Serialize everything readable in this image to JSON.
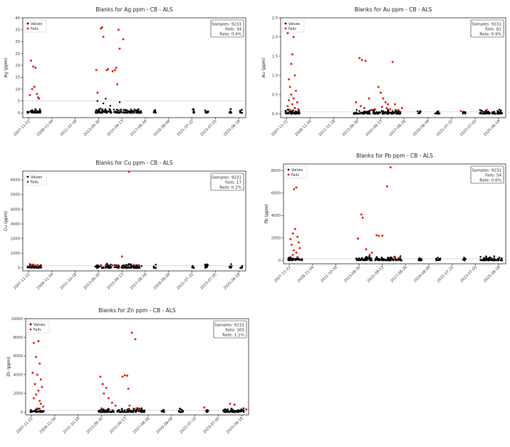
{
  "x_ticks": [
    "2007-11-22",
    "2009-11-04",
    "2011-10-18",
    "2013-09-30",
    "2015-09-13",
    "2017-08-26",
    "2019-08-09",
    "2021-07-22",
    "2023-07-05",
    "2025-06-18"
  ],
  "legend": {
    "values": "Values",
    "fails": "Fails"
  },
  "colors": {
    "values": "#000000",
    "fails": "#e8140c",
    "threshold": "#9a9a9a"
  },
  "chart_data": [
    {
      "type": "scatter",
      "title": "Blanks for Ag ppm - CB - ALS",
      "ylabel": "Ag (ppm)",
      "ylim": [
        -2,
        40
      ],
      "yticks": [
        "0",
        "5",
        "10",
        "15",
        "20",
        "25",
        "30",
        "35",
        "40"
      ],
      "ytick_values": [
        0,
        5,
        10,
        15,
        20,
        25,
        30,
        35,
        40
      ],
      "threshold": 5,
      "stats": {
        "samples": "Samples: 9231",
        "fails": "Fails: 34",
        "rate": "Rate: 0.4%"
      },
      "fails": [
        [
          0.1,
          22
        ],
        [
          0.2,
          19.5
        ],
        [
          0.3,
          19
        ],
        [
          0.25,
          11
        ],
        [
          0.15,
          10
        ],
        [
          0.35,
          8
        ],
        [
          0.05,
          7.5
        ],
        [
          0.4,
          6.5
        ],
        [
          0.45,
          6
        ],
        [
          2.9,
          18
        ],
        [
          2.95,
          8.5
        ],
        [
          3.1,
          35.5
        ],
        [
          3.15,
          36
        ],
        [
          3.2,
          32
        ],
        [
          3.35,
          18
        ],
        [
          3.4,
          18.5
        ],
        [
          3.6,
          17.5
        ],
        [
          3.7,
          18
        ],
        [
          3.75,
          19
        ],
        [
          3.8,
          12
        ],
        [
          3.85,
          35
        ],
        [
          3.9,
          27
        ],
        [
          4.05,
          31
        ]
      ]
    },
    {
      "type": "scatter",
      "title": "Blanks for Au ppm - CB - ALS",
      "ylabel": "Au (ppm)",
      "ylim": [
        -0.1,
        2.5
      ],
      "yticks": [
        "0.0",
        "0.5",
        "1.0",
        "1.5",
        "2.0",
        "2.5"
      ],
      "ytick_values": [
        0,
        0.5,
        1,
        1.5,
        2,
        2.5
      ],
      "threshold": 0.05,
      "stats": {
        "samples": "Samples: 9231",
        "fails": "Fails: 82",
        "rate": "Rate: 0.9%"
      },
      "fails": [
        [
          0.05,
          2.1
        ],
        [
          0.3,
          2
        ],
        [
          0.25,
          1.55
        ],
        [
          0.2,
          1.3
        ],
        [
          0.35,
          1.0
        ],
        [
          0.1,
          0.9
        ],
        [
          0.15,
          0.7
        ],
        [
          0.4,
          0.6
        ],
        [
          0.2,
          0.5
        ],
        [
          0.3,
          0.4
        ],
        [
          0.1,
          0.35
        ],
        [
          0.45,
          0.3
        ],
        [
          0.25,
          0.25
        ],
        [
          0.05,
          0.2
        ],
        [
          0.35,
          0.15
        ],
        [
          0.5,
          0.12
        ],
        [
          0.15,
          0.1
        ],
        [
          3.1,
          1.45
        ],
        [
          3.2,
          1.4
        ],
        [
          3.35,
          1.38
        ],
        [
          3.5,
          0.4
        ],
        [
          2.95,
          0.3
        ],
        [
          3.15,
          0.2
        ],
        [
          3.3,
          0.15
        ],
        [
          3.6,
          0.1
        ],
        [
          3.75,
          0.12
        ],
        [
          3.9,
          0.7
        ],
        [
          4.0,
          0.55
        ],
        [
          4.1,
          0.4
        ],
        [
          4.2,
          0.3
        ],
        [
          4.3,
          0.25
        ],
        [
          4.05,
          0.18
        ],
        [
          4.25,
          0.15
        ],
        [
          4.4,
          0.12
        ],
        [
          4.5,
          1.35
        ],
        [
          4.6,
          0.25
        ],
        [
          4.75,
          0.1
        ],
        [
          4.9,
          0.15
        ],
        [
          7.4,
          0.07
        ],
        [
          8.5,
          0.1
        ]
      ]
    },
    {
      "type": "scatter",
      "title": "Blanks for Cu ppm - CB - ALS",
      "ylabel": "Cu (ppm)",
      "ylim": [
        -200,
        6600
      ],
      "yticks": [
        "0",
        "1000",
        "2000",
        "3000",
        "4000",
        "5000",
        "6000"
      ],
      "ytick_values": [
        0,
        1000,
        2000,
        3000,
        4000,
        5000,
        6000
      ],
      "threshold": 150,
      "stats": {
        "samples": "Samples: 9231",
        "fails": "Fails: 17",
        "rate": "Rate: 0.2%"
      },
      "fails": [
        [
          0.2,
          230
        ],
        [
          0.4,
          200
        ],
        [
          0.1,
          190
        ],
        [
          0.3,
          180
        ],
        [
          3.1,
          200
        ],
        [
          3.3,
          190
        ],
        [
          3.6,
          180
        ],
        [
          3.8,
          170
        ],
        [
          4.0,
          780
        ],
        [
          4.3,
          6550
        ],
        [
          4.5,
          210
        ],
        [
          4.7,
          190
        ]
      ]
    },
    {
      "type": "scatter",
      "title": "Blanks for Pb ppm - CB - ALS",
      "ylabel": "Pb (ppm)",
      "ylim": [
        -300,
        8600
      ],
      "yticks": [
        "0",
        "2000",
        "4000",
        "6000",
        "8000"
      ],
      "ytick_values": [
        0,
        2000,
        4000,
        6000,
        8000
      ],
      "threshold": 150,
      "stats": {
        "samples": "Samples: 9231",
        "fails": "Fails: 54",
        "rate": "Rate: 0.6%"
      },
      "fails": [
        [
          0.2,
          6350
        ],
        [
          0.3,
          6500
        ],
        [
          0.25,
          2800
        ],
        [
          0.15,
          2400
        ],
        [
          0.35,
          2100
        ],
        [
          0.05,
          1900
        ],
        [
          0.4,
          1600
        ],
        [
          0.1,
          1400
        ],
        [
          0.45,
          1100
        ],
        [
          0.2,
          900
        ],
        [
          0.3,
          700
        ],
        [
          0.15,
          500
        ],
        [
          0.35,
          300
        ],
        [
          2.95,
          1950
        ],
        [
          3.1,
          4100
        ],
        [
          3.15,
          3800
        ],
        [
          3.3,
          1000
        ],
        [
          3.45,
          500
        ],
        [
          3.55,
          700
        ],
        [
          3.75,
          2250
        ],
        [
          3.85,
          2200
        ],
        [
          4.0,
          2200
        ],
        [
          4.2,
          6600
        ],
        [
          4.35,
          8300
        ],
        [
          4.5,
          300
        ],
        [
          4.7,
          200
        ]
      ]
    },
    {
      "type": "scatter",
      "title": "Blanks for Zn ppm - CB - ALS",
      "ylabel": "Zn (ppm)",
      "ylim": [
        -300,
        10000
      ],
      "yticks": [
        "0",
        "2000",
        "4000",
        "6000",
        "8000",
        "10000"
      ],
      "ytick_values": [
        0,
        2000,
        4000,
        6000,
        8000,
        10000
      ],
      "threshold": 200,
      "stats": {
        "samples": "Samples: 9231",
        "fails": "Fails: 103",
        "rate": "Rate: 1.1%"
      },
      "fails": [
        [
          0.1,
          7400
        ],
        [
          0.3,
          7600
        ],
        [
          0.2,
          5900
        ],
        [
          0.35,
          5200
        ],
        [
          0.05,
          4200
        ],
        [
          0.25,
          4000
        ],
        [
          0.4,
          3500
        ],
        [
          0.15,
          3000
        ],
        [
          0.45,
          2700
        ],
        [
          0.3,
          2300
        ],
        [
          0.2,
          1900
        ],
        [
          0.1,
          1500
        ],
        [
          0.35,
          1200
        ],
        [
          0.4,
          900
        ],
        [
          0.5,
          600
        ],
        [
          0.25,
          400
        ],
        [
          2.95,
          3800
        ],
        [
          3.05,
          3000
        ],
        [
          3.2,
          2600
        ],
        [
          3.1,
          2000
        ],
        [
          3.3,
          1500
        ],
        [
          3.45,
          1000
        ],
        [
          3.6,
          700
        ],
        [
          3.0,
          400
        ],
        [
          3.9,
          3800
        ],
        [
          4.0,
          3950
        ],
        [
          4.1,
          3900
        ],
        [
          4.15,
          2500
        ],
        [
          4.3,
          8500
        ],
        [
          4.45,
          7800
        ],
        [
          4.2,
          700
        ],
        [
          4.5,
          400
        ],
        [
          4.6,
          300
        ],
        [
          8.5,
          900
        ],
        [
          8.7,
          800
        ],
        [
          7.4,
          500
        ],
        [
          9.2,
          300
        ]
      ]
    }
  ]
}
